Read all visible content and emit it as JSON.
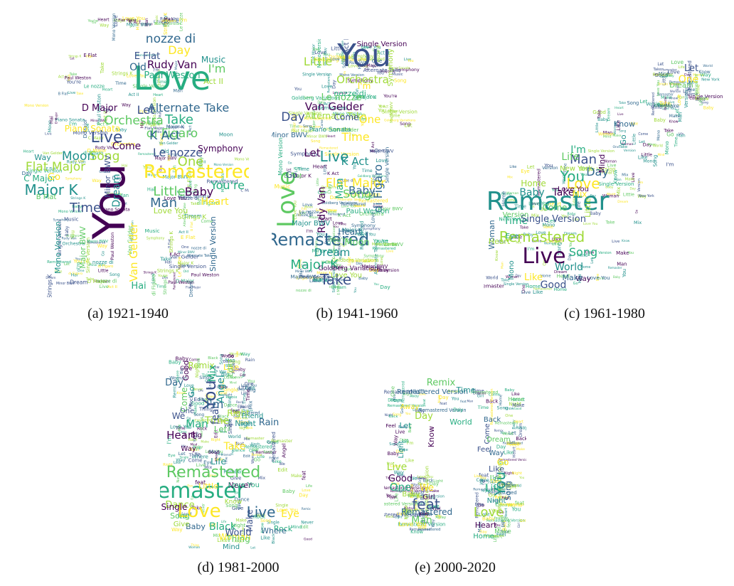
{
  "palette": [
    "#440154",
    "#3b528b",
    "#21918c",
    "#27ad81",
    "#5ec962",
    "#a0da39",
    "#fde725",
    "#31688e"
  ],
  "panels": [
    {
      "caption": "(a)  1921-1940",
      "shape": "piano",
      "words": [
        "You",
        "Love",
        "Remastered",
        "Live",
        "Orchestra",
        "Alternate Take",
        "Major K",
        "Flat Major",
        "Rudy Van",
        "Paul Weston",
        "Van Gelder",
        "Le nozze",
        "di Figaro",
        "K Act",
        "Moon",
        "Song",
        "Baby",
        "You're",
        "Heart",
        "Time",
        "Little",
        "Man",
        "Dream",
        "One",
        "Come",
        "Take",
        "Day",
        "E Flat",
        "B Flat",
        "nozze di",
        "Music",
        "Act II",
        "D Major",
        "C Major",
        "Piano Sonata",
        "Minor BWV",
        "Major BWV",
        "Single Version",
        "Mono Version",
        "Love You",
        "Symphony",
        "Hai",
        "Go",
        "Let",
        "I'm",
        "Old",
        "Way",
        "Strings K"
      ]
    },
    {
      "caption": "(b)  1941-1960",
      "shape": "saxophone",
      "words": [
        "You",
        "Love",
        "Remastered",
        "Live",
        "Orchestra",
        "Van Gelder",
        "Major K",
        "Flat Major",
        "Take",
        "Le nozze",
        "di Figaro",
        "K Act",
        "Alternate Take",
        "Rudy Van",
        "Paul Weston",
        "Time",
        "Day",
        "Song",
        "Baby",
        "Dream",
        "Little",
        "Let",
        "Man",
        "One",
        "Come",
        "Moon",
        "Heart",
        "Piano Sonata",
        "Symphony",
        "Single Version",
        "Mono Version",
        "Music",
        "Act II",
        "B Flat",
        "Minor BWV",
        "Major BWV",
        "Love You",
        "Goldberg Variations",
        "nozze di",
        "I'm",
        "Go",
        "You're"
      ]
    },
    {
      "caption": "(c)  1961-1980",
      "shape": "guitar",
      "words": [
        "Remaster",
        "Remastered",
        "Live",
        "You",
        "Love",
        "Man",
        "Life",
        "Day",
        "Baby",
        "Home",
        "Take",
        "Time",
        "Mix",
        "Single Version",
        "Version",
        "Woman",
        "World",
        "Heart",
        "Way",
        "Song",
        "Like",
        "Good",
        "Come",
        "Make",
        "Mono",
        "Little",
        "Mind",
        "I'm",
        "One",
        "Let",
        "Dream",
        "Know",
        "Go",
        "New York",
        "Love You",
        "Eye"
      ]
    },
    {
      "caption": "(d)  1981-2000",
      "shape": "gramophone",
      "words": [
        "Remaster",
        "Love",
        "You",
        "Remastered",
        "Live",
        "Life",
        "Time",
        "Heart",
        "Man",
        "Take",
        "feat",
        "Come",
        "Day",
        "Go",
        "Right",
        "Way",
        "Black",
        "Woman",
        "World",
        "Song",
        "Baby",
        "Angel",
        "Remix",
        "Good",
        "Mix",
        "Like",
        "One",
        "Edit",
        "Rain",
        "Friend",
        "Dance",
        "Never",
        "Rock",
        "Eye",
        "Make",
        "Thing",
        "Where",
        "Mind",
        "Give",
        "Single",
        "Love You",
        "Little",
        "We",
        "Let",
        "I'm",
        "Night",
        "Know",
        "Big"
      ]
    },
    {
      "caption": "(e)  2000-2020",
      "shape": "headphones",
      "words": [
        "Remix",
        "Remastered Version",
        "Time",
        "Live",
        "Good",
        "One",
        "We",
        "feat",
        "Man",
        "Remastered",
        "You",
        "Love",
        "Heart",
        "Life",
        "Go",
        "Like",
        "I'm",
        "Song",
        "Night",
        "Day",
        "Know",
        "World",
        "Love You",
        "Come",
        "Make",
        "Way",
        "Let",
        "Baby",
        "Girl",
        "Home",
        "Away",
        "Feel",
        "Dream",
        "Back",
        "Light"
      ]
    }
  ]
}
